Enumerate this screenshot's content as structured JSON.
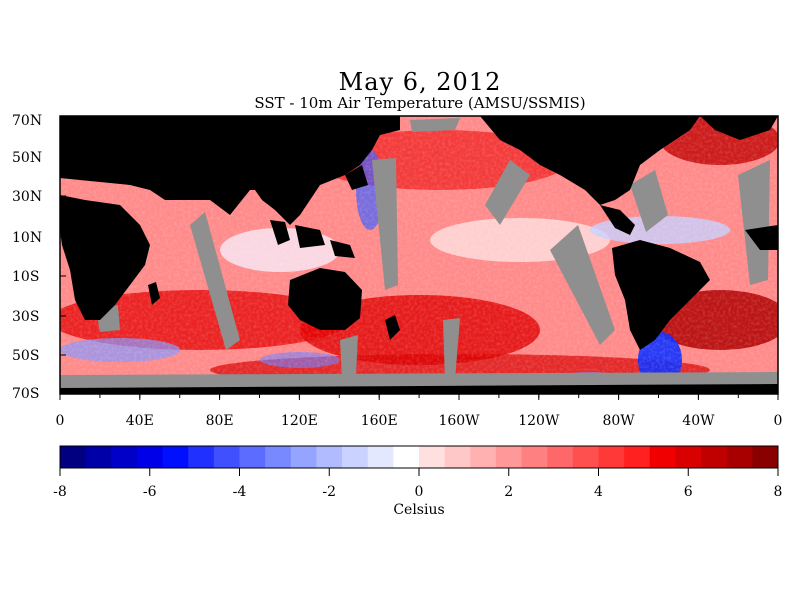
{
  "title": "May 6, 2012",
  "subtitle": "SST - 10m Air Temperature (AMSU/SSMIS)",
  "map": {
    "lat_labels": [
      "70N",
      "50N",
      "30N",
      "10N",
      "10S",
      "30S",
      "50S",
      "70S"
    ],
    "lon_labels": [
      "0",
      "40E",
      "80E",
      "120E",
      "160E",
      "160W",
      "120W",
      "80W",
      "40W",
      "0"
    ],
    "colors": {
      "land": "#000000",
      "missing": "#8f8f8f"
    }
  },
  "colorbar": {
    "ticks": [
      "-8",
      "-6",
      "-4",
      "-2",
      "0",
      "2",
      "4",
      "6",
      "8"
    ],
    "unit_label": "Celsius",
    "colors": [
      "#000080",
      "#0000a8",
      "#0000c8",
      "#0000e8",
      "#0010ff",
      "#2030ff",
      "#4050ff",
      "#5c6cff",
      "#7888ff",
      "#94a4ff",
      "#b0bcff",
      "#cad2ff",
      "#e4e8ff",
      "#ffffff",
      "#ffe0e0",
      "#ffc8c8",
      "#ffb0b0",
      "#ff9898",
      "#ff8080",
      "#ff6868",
      "#ff5050",
      "#ff3838",
      "#ff2020",
      "#f00000",
      "#d80000",
      "#c00000",
      "#a80000",
      "#880000"
    ]
  }
}
